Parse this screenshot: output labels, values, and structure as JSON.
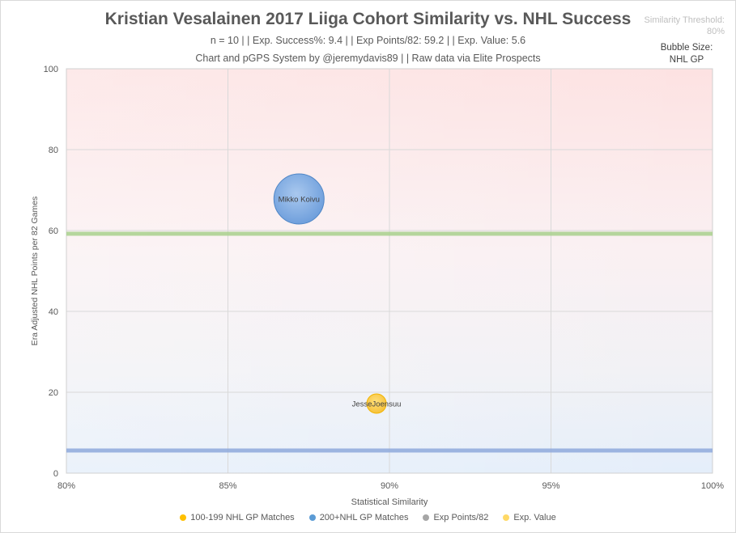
{
  "header": {
    "title": "Kristian Vesalainen 2017 Liiga Cohort Similarity vs. NHL Success",
    "subtitle": "n = 10  | | Exp. Success%: 9.4  | | Exp Points/82: 59.2  | | Exp. Value: 5.6",
    "credit": "Chart and pGPS System by @jeremydavis89  | | Raw data via Elite Prospects",
    "threshold_label": "Similarity Threshold:",
    "threshold_value": "80%",
    "bubble_size_label": "Bubble Size:",
    "bubble_size_value": "NHL GP"
  },
  "chart_data": {
    "type": "scatter",
    "subtype": "bubble",
    "title": "Kristian Vesalainen 2017 Liiga Cohort Similarity vs. NHL Success",
    "xlabel": "Statistical Similarity",
    "ylabel": "Era Adjusted NHL Points per 82 Games",
    "xlim": [
      80,
      100
    ],
    "ylim": [
      0,
      100
    ],
    "x_ticks": [
      80,
      85,
      90,
      95,
      100
    ],
    "x_tick_labels": [
      "80%",
      "85%",
      "90%",
      "95%",
      "100%"
    ],
    "y_ticks": [
      0,
      20,
      40,
      60,
      80,
      100
    ],
    "y_tick_labels": [
      "0",
      "20",
      "40",
      "60",
      "80",
      "100"
    ],
    "grid": true,
    "series": [
      {
        "name": "100-199 NHL GP Matches",
        "color": "#ffc000",
        "points": [
          {
            "label": "JesseJoensuu",
            "x": 89.6,
            "y": 17.2,
            "gp": 150
          }
        ]
      },
      {
        "name": "200+NHL GP Matches",
        "color": "#5b9bd5",
        "points": [
          {
            "label": "Mikko Koivu",
            "x": 87.2,
            "y": 67.8,
            "gp": 1000
          }
        ]
      }
    ],
    "reference_lines": [
      {
        "name": "Exp Points/82",
        "y": 59.2,
        "color": "#a9d18e"
      },
      {
        "name": "Exp. Value",
        "y": 5.6,
        "color": "#8faadc"
      }
    ],
    "legend": [
      {
        "label": "100-199 NHL GP Matches",
        "color": "#ffc000"
      },
      {
        "label": "200+NHL GP Matches",
        "color": "#5b9bd5"
      },
      {
        "label": "Exp Points/82",
        "color": "#a6a6a6"
      },
      {
        "label": "Exp. Value",
        "color": "#ffd966"
      }
    ],
    "legend_position": "bottom"
  }
}
